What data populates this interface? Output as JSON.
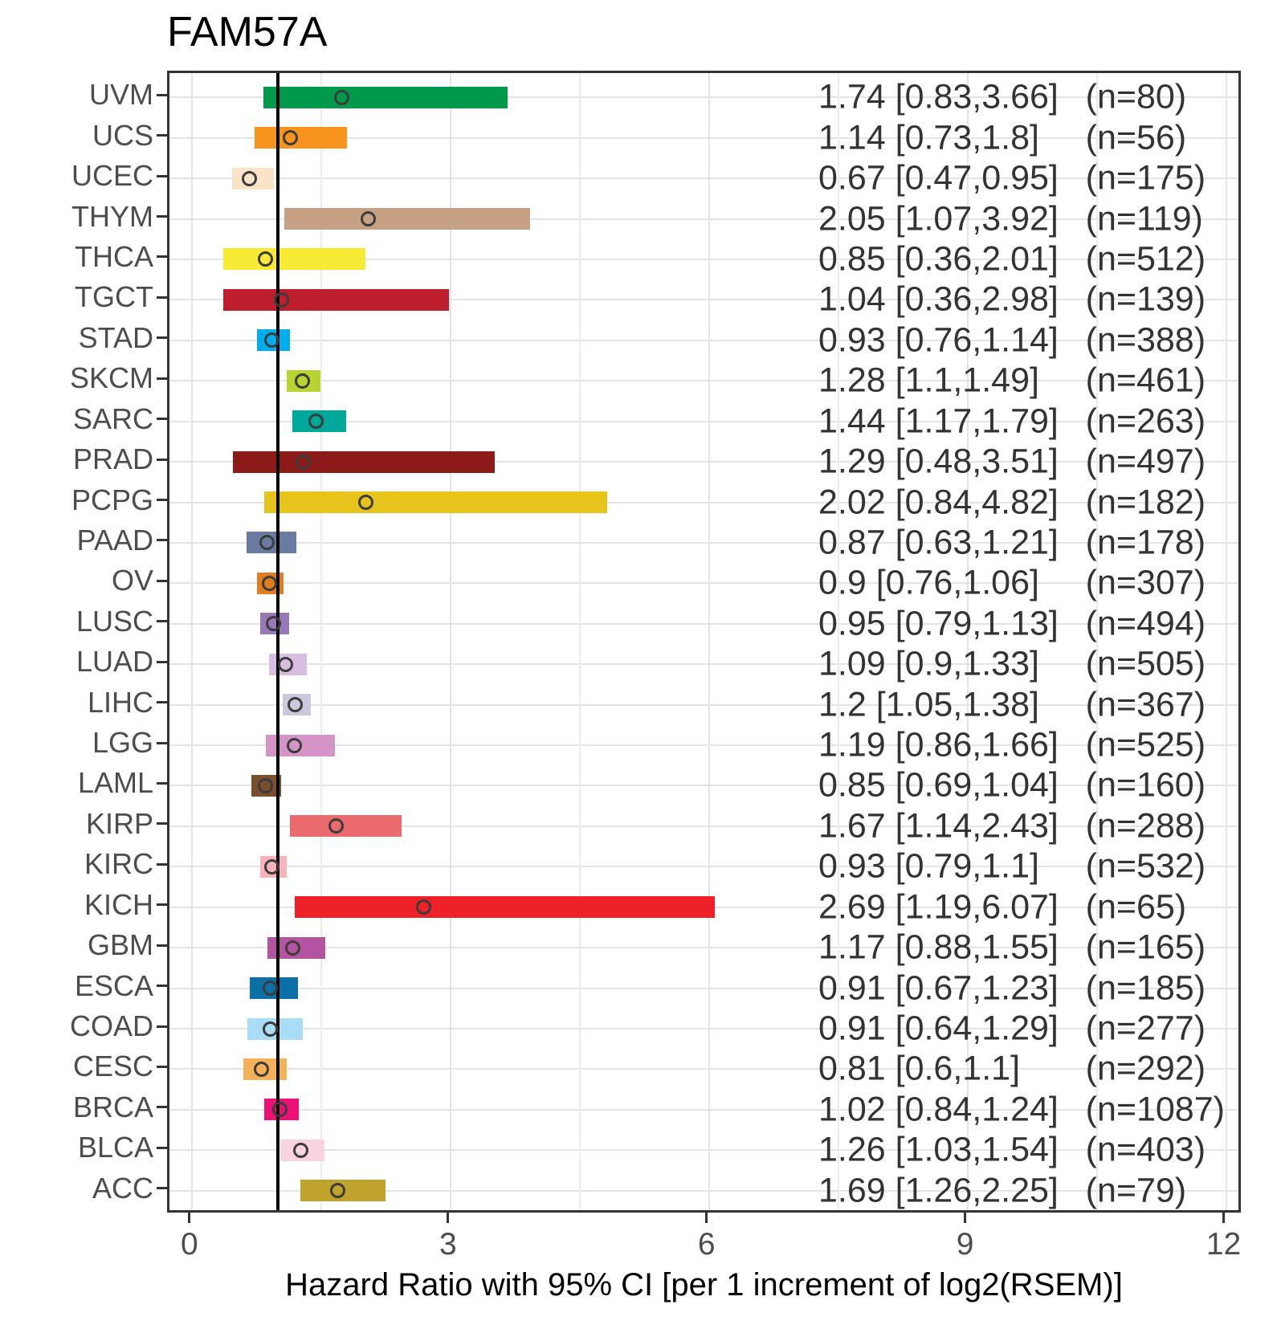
{
  "chart_data": {
    "type": "bar",
    "subtype": "forest-plot-horizontal-interval",
    "title": "FAM57A",
    "xlabel": "Hazard Ratio with 95% CI [per 1 increment of log2(RSEM)]",
    "ylabel": "",
    "xlim": [
      -0.26,
      12.2
    ],
    "x_major_ticks": [
      0,
      3,
      6,
      9,
      12
    ],
    "x_minor_gridlines": [
      1.5,
      4.5,
      7.5,
      10.5
    ],
    "reference_line_x": 1,
    "grid": true,
    "legend": "none",
    "marker": "open-circle",
    "rows": [
      {
        "label": "UVM",
        "hr": 1.74,
        "ci_low": 0.83,
        "ci_high": 3.66,
        "n": 80,
        "hr_text": "1.74 [0.83,3.66]",
        "n_text": "(n=80)",
        "color": "#019A4B"
      },
      {
        "label": "UCS",
        "hr": 1.14,
        "ci_low": 0.73,
        "ci_high": 1.8,
        "n": 56,
        "hr_text": "1.14 [0.73,1.8]",
        "n_text": "(n=56)",
        "color": "#F7941E"
      },
      {
        "label": "UCEC",
        "hr": 0.67,
        "ci_low": 0.47,
        "ci_high": 0.95,
        "n": 175,
        "hr_text": "0.67 [0.47,0.95]",
        "n_text": "(n=175)",
        "color": "#FBE3C8"
      },
      {
        "label": "THYM",
        "hr": 2.05,
        "ci_low": 1.07,
        "ci_high": 3.92,
        "n": 119,
        "hr_text": "2.05 [1.07,3.92]",
        "n_text": "(n=119)",
        "color": "#C7A184"
      },
      {
        "label": "THCA",
        "hr": 0.85,
        "ci_low": 0.36,
        "ci_high": 2.01,
        "n": 512,
        "hr_text": "0.85 [0.36,2.01]",
        "n_text": "(n=512)",
        "color": "#F7EB36"
      },
      {
        "label": "TGCT",
        "hr": 1.04,
        "ci_low": 0.36,
        "ci_high": 2.98,
        "n": 139,
        "hr_text": "1.04 [0.36,2.98]",
        "n_text": "(n=139)",
        "color": "#BE1E2D"
      },
      {
        "label": "STAD",
        "hr": 0.93,
        "ci_low": 0.76,
        "ci_high": 1.14,
        "n": 388,
        "hr_text": "0.93 [0.76,1.14]",
        "n_text": "(n=388)",
        "color": "#00AEEF"
      },
      {
        "label": "SKCM",
        "hr": 1.28,
        "ci_low": 1.1,
        "ci_high": 1.49,
        "n": 461,
        "hr_text": "1.28 [1.1,1.49]",
        "n_text": "(n=461)",
        "color": "#B8D433"
      },
      {
        "label": "SARC",
        "hr": 1.44,
        "ci_low": 1.17,
        "ci_high": 1.79,
        "n": 263,
        "hr_text": "1.44 [1.17,1.79]",
        "n_text": "(n=263)",
        "color": "#00A79B"
      },
      {
        "label": "PRAD",
        "hr": 1.29,
        "ci_low": 0.48,
        "ci_high": 3.51,
        "n": 497,
        "hr_text": "1.29 [0.48,3.51]",
        "n_text": "(n=497)",
        "color": "#8B1A18"
      },
      {
        "label": "PCPG",
        "hr": 2.02,
        "ci_low": 0.84,
        "ci_high": 4.82,
        "n": 182,
        "hr_text": "2.02 [0.84,4.82]",
        "n_text": "(n=182)",
        "color": "#E7C41B"
      },
      {
        "label": "PAAD",
        "hr": 0.87,
        "ci_low": 0.63,
        "ci_high": 1.21,
        "n": 178,
        "hr_text": "0.87 [0.63,1.21]",
        "n_text": "(n=178)",
        "color": "#6A7BA2"
      },
      {
        "label": "OV",
        "hr": 0.9,
        "ci_low": 0.76,
        "ci_high": 1.06,
        "n": 307,
        "hr_text": "0.9 [0.76,1.06]",
        "n_text": "(n=307)",
        "color": "#DE7D21"
      },
      {
        "label": "LUSC",
        "hr": 0.95,
        "ci_low": 0.79,
        "ci_high": 1.13,
        "n": 494,
        "hr_text": "0.95 [0.79,1.13]",
        "n_text": "(n=494)",
        "color": "#9779B7"
      },
      {
        "label": "LUAD",
        "hr": 1.09,
        "ci_low": 0.9,
        "ci_high": 1.33,
        "n": 505,
        "hr_text": "1.09 [0.9,1.33]",
        "n_text": "(n=505)",
        "color": "#D8BFE1"
      },
      {
        "label": "LIHC",
        "hr": 1.2,
        "ci_low": 1.05,
        "ci_high": 1.38,
        "n": 367,
        "hr_text": "1.2 [1.05,1.38]",
        "n_text": "(n=367)",
        "color": "#C8C9DD"
      },
      {
        "label": "LGG",
        "hr": 1.19,
        "ci_low": 0.86,
        "ci_high": 1.66,
        "n": 525,
        "hr_text": "1.19 [0.86,1.66]",
        "n_text": "(n=525)",
        "color": "#D495C6"
      },
      {
        "label": "LAML",
        "hr": 0.85,
        "ci_low": 0.69,
        "ci_high": 1.04,
        "n": 160,
        "hr_text": "0.85 [0.69,1.04]",
        "n_text": "(n=160)",
        "color": "#7A4F2E"
      },
      {
        "label": "KIRP",
        "hr": 1.67,
        "ci_low": 1.14,
        "ci_high": 2.43,
        "n": 288,
        "hr_text": "1.67 [1.14,2.43]",
        "n_text": "(n=288)",
        "color": "#EB6A6E"
      },
      {
        "label": "KIRC",
        "hr": 0.93,
        "ci_low": 0.79,
        "ci_high": 1.1,
        "n": 532,
        "hr_text": "0.93 [0.79,1.1]",
        "n_text": "(n=532)",
        "color": "#FAB3BB"
      },
      {
        "label": "KICH",
        "hr": 2.69,
        "ci_low": 1.19,
        "ci_high": 6.07,
        "n": 65,
        "hr_text": "2.69 [1.19,6.07]",
        "n_text": "(n=65)",
        "color": "#EE2128"
      },
      {
        "label": "GBM",
        "hr": 1.17,
        "ci_low": 0.88,
        "ci_high": 1.55,
        "n": 165,
        "hr_text": "1.17 [0.88,1.55]",
        "n_text": "(n=165)",
        "color": "#B4539F"
      },
      {
        "label": "ESCA",
        "hr": 0.91,
        "ci_low": 0.67,
        "ci_high": 1.23,
        "n": 185,
        "hr_text": "0.91 [0.67,1.23]",
        "n_text": "(n=185)",
        "color": "#0C70A8"
      },
      {
        "label": "COAD",
        "hr": 0.91,
        "ci_low": 0.64,
        "ci_high": 1.29,
        "n": 277,
        "hr_text": "0.91 [0.64,1.29]",
        "n_text": "(n=277)",
        "color": "#A9DDF6"
      },
      {
        "label": "CESC",
        "hr": 0.81,
        "ci_low": 0.6,
        "ci_high": 1.1,
        "n": 292,
        "hr_text": "0.81 [0.6,1.1]",
        "n_text": "(n=292)",
        "color": "#F5B158"
      },
      {
        "label": "BRCA",
        "hr": 1.02,
        "ci_low": 0.84,
        "ci_high": 1.24,
        "n": 1087,
        "hr_text": "1.02 [0.84,1.24]",
        "n_text": "(n=1087)",
        "color": "#EE1076"
      },
      {
        "label": "BLCA",
        "hr": 1.26,
        "ci_low": 1.03,
        "ci_high": 1.54,
        "n": 403,
        "hr_text": "1.26 [1.03,1.54]",
        "n_text": "(n=403)",
        "color": "#F9D3DE"
      },
      {
        "label": "ACC",
        "hr": 1.69,
        "ci_low": 1.26,
        "ci_high": 2.25,
        "n": 79,
        "hr_text": "1.69 [1.26,2.25]",
        "n_text": "(n=79)",
        "color": "#BFA32C"
      }
    ]
  },
  "style": {
    "title": "#000000",
    "panel_border": "#343434",
    "grid_major": "#E4E4E4",
    "grid_minor": "#ECECEC",
    "tick": "#333333",
    "axis_text": "#4D4D4D",
    "annotation": "#333333",
    "marker_stroke": "#3C3C3C",
    "refline": "#000000"
  }
}
